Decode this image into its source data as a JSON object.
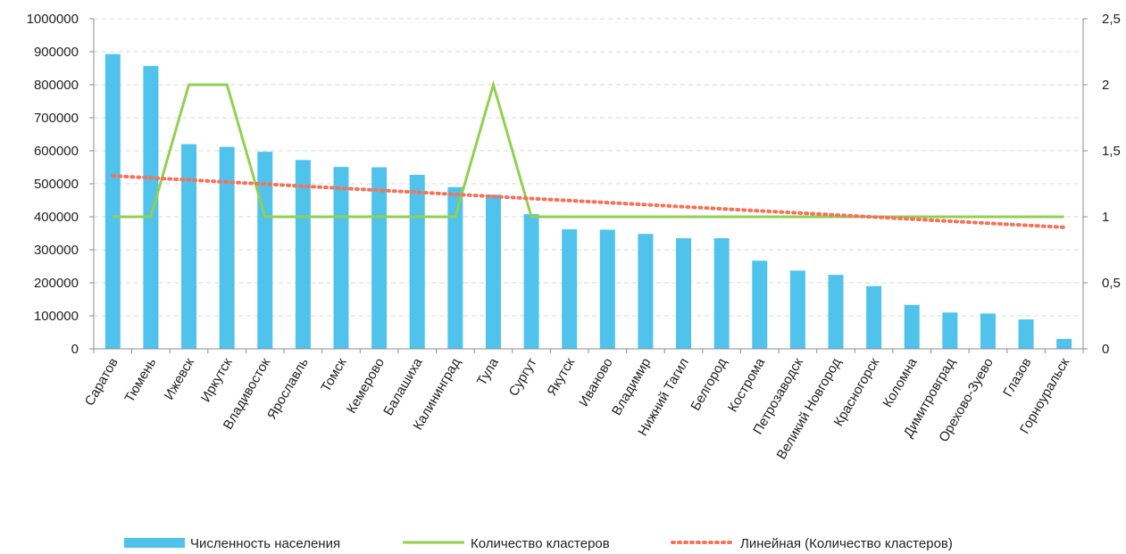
{
  "chart_data": {
    "type": "bar",
    "categories": [
      "Саратов",
      "Тюмень",
      "Ижевск",
      "Иркутск",
      "Владивосток",
      "Ярославль",
      "Томск",
      "Кемерово",
      "Балашиха",
      "Калининград",
      "Тула",
      "Сургут",
      "Якутск",
      "Иваново",
      "Владимир",
      "Нижний Тагил",
      "Белгород",
      "Кострома",
      "Петрозаводск",
      "Великий Новгород",
      "Красногорск",
      "Коломна",
      "Димитровград",
      "Орехово-Зуево",
      "Глазов",
      "Горноуральск"
    ],
    "series": [
      {
        "name": "Численность населения",
        "type": "bar",
        "axis": "left",
        "color": "#4FC3EC",
        "values": [
          893000,
          857000,
          620000,
          612000,
          597000,
          572000,
          551000,
          550000,
          527000,
          490000,
          467000,
          408000,
          362000,
          361000,
          348000,
          335000,
          335000,
          267000,
          237000,
          224000,
          190000,
          133000,
          110000,
          107000,
          89000,
          30000
        ]
      },
      {
        "name": "Количество кластеров",
        "type": "line",
        "axis": "right",
        "color": "#92D050",
        "values": [
          1,
          1,
          2,
          2,
          1,
          1,
          1,
          1,
          1,
          1,
          2,
          1,
          1,
          1,
          1,
          1,
          1,
          1,
          1,
          1,
          1,
          1,
          1,
          1,
          1,
          1
        ]
      },
      {
        "name": "Линейная (Количество кластеров)",
        "type": "trendline",
        "axis": "right",
        "color": "#F4735A",
        "start": 1.31,
        "end": 0.92
      }
    ],
    "y_left": {
      "ylim": [
        0,
        1000000
      ],
      "ticks": [
        "0",
        "100000",
        "200000",
        "300000",
        "400000",
        "500000",
        "600000",
        "700000",
        "800000",
        "900000",
        "1000000"
      ]
    },
    "y_right": {
      "ylim": [
        0,
        2.5
      ],
      "ticks": [
        "0",
        "0,5",
        "1",
        "1,5",
        "2",
        "2,5"
      ]
    },
    "title": "",
    "xlabel": "",
    "grid": true,
    "legend_position": "bottom"
  }
}
